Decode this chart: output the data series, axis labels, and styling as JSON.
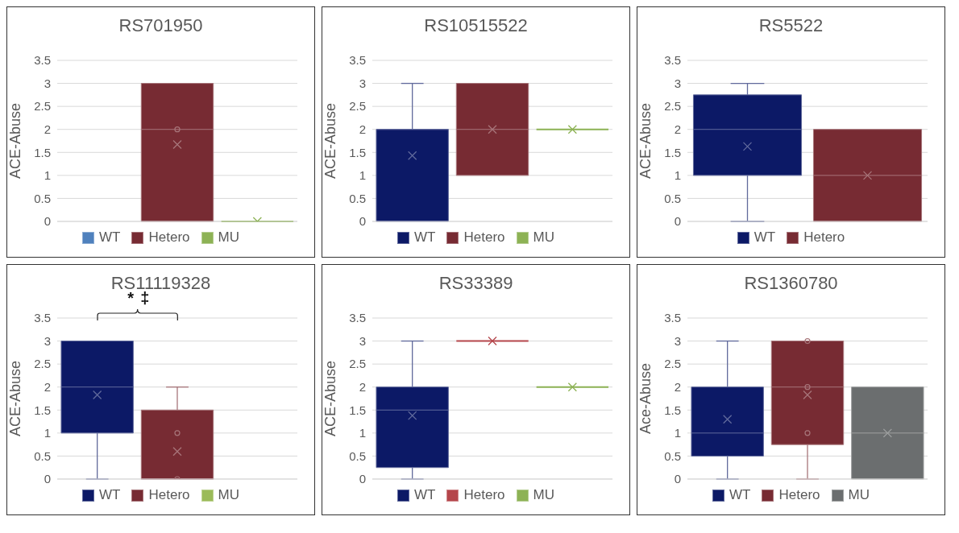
{
  "chart_data": [
    {
      "type": "box",
      "title": "RS701950",
      "ylabel": "ACE-Abuse",
      "categories": [
        null
      ],
      "ylim": [
        0,
        3.5
      ],
      "yticks": [
        0,
        0.5,
        1,
        1.5,
        2,
        2.5,
        3,
        3.5
      ],
      "grid": "y",
      "legend": "bottom",
      "series": [
        {
          "name": "WT",
          "color": "#4f81bd",
          "boxes": [
            null
          ]
        },
        {
          "name": "Hetero",
          "color": "#772b33",
          "boxes": [
            {
              "low": 0,
              "q1": 0,
              "median": 2,
              "q3": 3,
              "high": 3,
              "mean": 1.67,
              "outliers": [
                2
              ]
            }
          ]
        },
        {
          "name": "MU",
          "color": "#8db255",
          "boxes": [
            {
              "low": 0,
              "q1": 0,
              "median": 0,
              "q3": 0,
              "high": 0,
              "mean": 0
            }
          ]
        }
      ]
    },
    {
      "type": "box",
      "title": "RS10515522",
      "ylabel": "ACE-Abuse",
      "categories": [
        null
      ],
      "ylim": [
        0,
        3.5
      ],
      "yticks": [
        0,
        0.5,
        1,
        1.5,
        2,
        2.5,
        3,
        3.5
      ],
      "grid": "y",
      "legend": "bottom",
      "series": [
        {
          "name": "WT",
          "color": "#0c1966",
          "boxes": [
            {
              "low": 0,
              "q1": 0,
              "median": 2,
              "q3": 2,
              "high": 3,
              "mean": 1.43
            }
          ]
        },
        {
          "name": "Hetero",
          "color": "#772b33",
          "boxes": [
            {
              "low": 1,
              "q1": 1,
              "median": 2,
              "q3": 3,
              "high": 3,
              "mean": 2
            }
          ]
        },
        {
          "name": "MU",
          "color": "#8db255",
          "boxes": [
            {
              "low": 2,
              "q1": 2,
              "median": 2,
              "q3": 2,
              "high": 2,
              "mean": 2
            }
          ]
        }
      ]
    },
    {
      "type": "box",
      "title": "RS5522",
      "ylabel": "ACE-Abuse",
      "categories": [
        null
      ],
      "ylim": [
        0,
        3.5
      ],
      "yticks": [
        0,
        0.5,
        1,
        1.5,
        2,
        2.5,
        3,
        3.5
      ],
      "grid": "y",
      "legend": "bottom",
      "series": [
        {
          "name": "WT",
          "color": "#0c1966",
          "boxes": [
            {
              "low": 0,
              "q1": 1,
              "median": 2,
              "q3": 2.75,
              "high": 3,
              "mean": 1.63
            }
          ]
        },
        {
          "name": "Hetero",
          "color": "#772b33",
          "boxes": [
            {
              "low": 0,
              "q1": 0,
              "median": 1,
              "q3": 2,
              "high": 2,
              "mean": 1
            }
          ]
        }
      ]
    },
    {
      "type": "box",
      "title": "RS11119328",
      "ylabel": "ACE-Abuse",
      "categories": [
        null
      ],
      "ylim": [
        0,
        3.5
      ],
      "yticks": [
        0,
        0.5,
        1,
        1.5,
        2,
        2.5,
        3,
        3.5
      ],
      "grid": "y",
      "legend": "bottom",
      "annotations": [
        "*",
        "‡"
      ],
      "series": [
        {
          "name": "WT",
          "color": "#0c1966",
          "boxes": [
            {
              "low": 0,
              "q1": 1,
              "median": 2,
              "q3": 3,
              "high": 3,
              "mean": 1.83
            }
          ]
        },
        {
          "name": "Hetero",
          "color": "#772b33",
          "boxes": [
            {
              "low": 0,
              "q1": 0,
              "median": 0,
              "q3": 1.5,
              "high": 2,
              "mean": 0.6,
              "outliers": [
                1,
                0
              ]
            }
          ]
        },
        {
          "name": "MU",
          "color": "#9bbb59",
          "boxes": [
            null
          ]
        }
      ]
    },
    {
      "type": "box",
      "title": "RS33389",
      "ylabel": "ACE-Abuse",
      "categories": [
        null
      ],
      "ylim": [
        0,
        3.5
      ],
      "yticks": [
        0,
        0.5,
        1,
        1.5,
        2,
        2.5,
        3,
        3.5
      ],
      "grid": "y",
      "legend": "bottom",
      "series": [
        {
          "name": "WT",
          "color": "#0c1966",
          "boxes": [
            {
              "low": 0,
              "q1": 0.25,
              "median": 1.5,
              "q3": 2,
              "high": 3,
              "mean": 1.38
            }
          ]
        },
        {
          "name": "Hetero",
          "color": "#b5464b",
          "boxes": [
            {
              "low": 3,
              "q1": 3,
              "median": 3,
              "q3": 3,
              "high": 3,
              "mean": 3
            }
          ]
        },
        {
          "name": "MU",
          "color": "#8db255",
          "boxes": [
            {
              "low": 2,
              "q1": 2,
              "median": 2,
              "q3": 2,
              "high": 2,
              "mean": 2
            }
          ]
        }
      ]
    },
    {
      "type": "box",
      "title": "RS1360780",
      "ylabel": "Ace-Abuse",
      "categories": [
        null
      ],
      "ylim": [
        0,
        3.5
      ],
      "yticks": [
        0,
        0.5,
        1,
        1.5,
        2,
        2.5,
        3,
        3.5
      ],
      "grid": "y",
      "legend": "bottom",
      "series": [
        {
          "name": "WT",
          "color": "#0c1966",
          "boxes": [
            {
              "low": 0,
              "q1": 0.5,
              "median": 1,
              "q3": 2,
              "high": 3,
              "mean": 1.3
            }
          ]
        },
        {
          "name": "Hetero",
          "color": "#772b33",
          "boxes": [
            {
              "low": 0,
              "q1": 0.75,
              "median": 2,
              "q3": 3,
              "high": 3,
              "mean": 1.83,
              "outliers": [
                3,
                2,
                1
              ]
            }
          ]
        },
        {
          "name": "MU",
          "color": "#6b6e6f",
          "boxes": [
            {
              "low": 0,
              "q1": 0,
              "median": 1,
              "q3": 2,
              "high": 2,
              "mean": 1
            }
          ]
        }
      ]
    }
  ]
}
